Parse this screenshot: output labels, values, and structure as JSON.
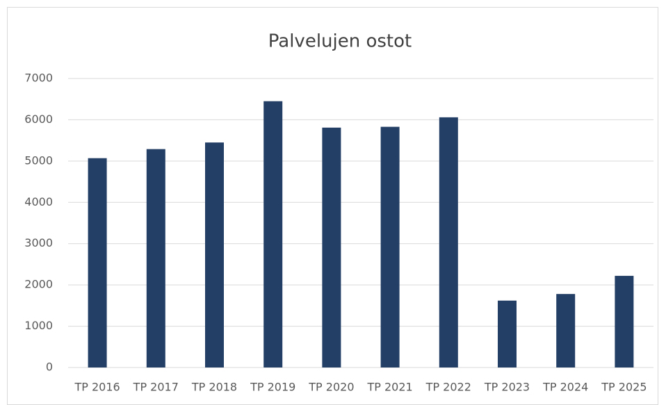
{
  "chart_data": {
    "type": "bar",
    "title": "Palvelujen ostot",
    "categories": [
      "TP 2016",
      "TP 2017",
      "TP 2018",
      "TP 2019",
      "TP 2020",
      "TP 2021",
      "TP 2022",
      "TP 2023",
      "TP 2024",
      "TP 2025"
    ],
    "values": [
      5070,
      5290,
      5450,
      6450,
      5810,
      5830,
      6060,
      1620,
      1780,
      2220
    ],
    "color": "#243f66",
    "ylim": [
      0,
      7000
    ],
    "yticks": [
      0,
      1000,
      2000,
      3000,
      4000,
      5000,
      6000,
      7000
    ],
    "grid": true
  }
}
